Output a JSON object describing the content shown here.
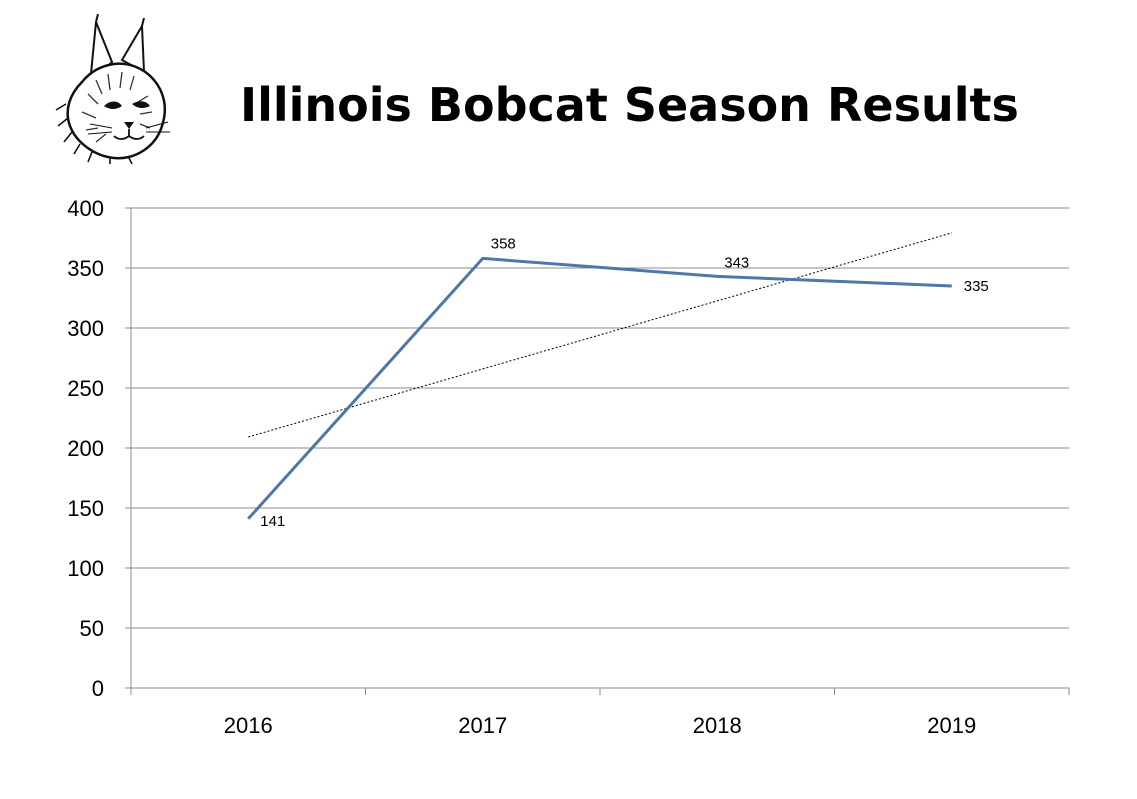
{
  "title": "Illinois Bobcat Season Results",
  "logo": {
    "icon": "bobcat-head-icon"
  },
  "chart_data": {
    "type": "line",
    "title": "Illinois Bobcat Season Results",
    "categories": [
      "2016",
      "2017",
      "2018",
      "2019"
    ],
    "series": [
      {
        "values": [
          141,
          358,
          343,
          335
        ],
        "color": "#4e77aa",
        "data_labels": [
          "141",
          "358",
          "343",
          "335"
        ]
      }
    ],
    "trendline": {
      "type": "linear",
      "style": "dotted",
      "color": "#000000"
    },
    "ylim": [
      0,
      400
    ],
    "yticks": [
      0,
      50,
      100,
      150,
      200,
      250,
      300,
      350,
      400
    ],
    "grid": true,
    "legend": "none",
    "xlabel": "",
    "ylabel": ""
  }
}
